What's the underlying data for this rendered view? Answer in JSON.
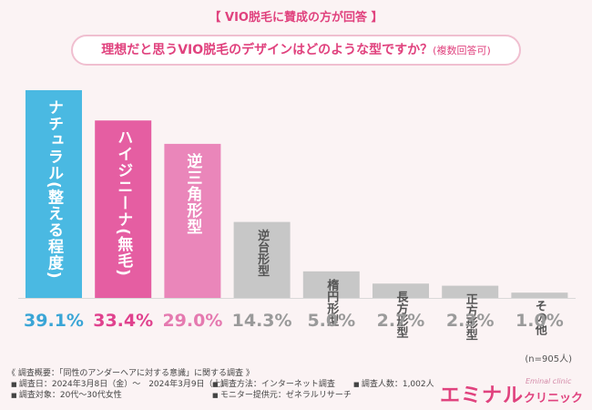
{
  "header": "【 VIO脱毛に賛成の方が回答 】",
  "question": {
    "text": "理想だと思うVIO脱毛のデザインはどのような型ですか？",
    "note": "(複数回答可)"
  },
  "chart_data": {
    "type": "bar",
    "categories": [
      "ナチュラル(整える程度)",
      "ハイジニーナ(無毛)",
      "逆三角形型",
      "逆台形型",
      "楕円形型",
      "長方形型",
      "正方形型",
      "その他"
    ],
    "values": [
      39.1,
      33.4,
      29.0,
      14.3,
      5.0,
      2.7,
      2.3,
      1.0
    ],
    "value_labels": [
      "39.1%",
      "33.4%",
      "29.0%",
      "14.3%",
      "5.0%",
      "2.7%",
      "2.3%",
      "1.0%"
    ],
    "colors": [
      "#4ab9e2",
      "#e55ea2",
      "#ea86ba",
      "#c7c7c7",
      "#c7c7c7",
      "#c7c7c7",
      "#c7c7c7",
      "#c7c7c7"
    ],
    "label_colors": [
      "#3aa5d6",
      "#e0428e",
      "#e57ab0",
      "#9a9a9a",
      "#9a9a9a",
      "#9a9a9a",
      "#9a9a9a",
      "#9a9a9a"
    ],
    "ylim": [
      0,
      40
    ],
    "grid": false,
    "title": "",
    "xlabel": "",
    "ylabel": ""
  },
  "n_label": "(n=905人)",
  "footer": {
    "title": "《 調査概要：「同性のアンダーヘアに対する意識」に関する調査 》",
    "items": [
      "調査日：2024年3月8日（金）〜　2024年3月9日（土）",
      "調査方法：インターネット調査",
      "調査人数：1,002人",
      "調査対象：20代〜30代女性",
      "モニター提供元：ゼネラルリサーチ"
    ]
  },
  "logo": {
    "main": "エミナル",
    "small": "クリニック",
    "sub": "Eminal clinic"
  }
}
